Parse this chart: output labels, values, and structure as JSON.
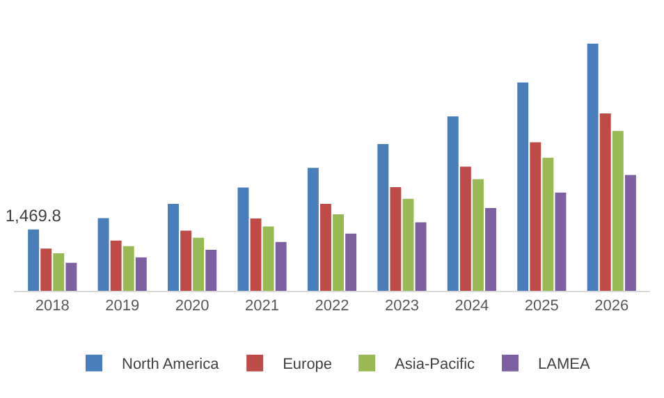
{
  "chart_data": {
    "type": "bar",
    "categories": [
      "2018",
      "2019",
      "2020",
      "2021",
      "2022",
      "2023",
      "2024",
      "2025",
      "2026"
    ],
    "series": [
      {
        "name": "North America",
        "color": "#4a7ebb",
        "values": [
          1469.8,
          1740,
          2080,
          2470,
          2940,
          3510,
          4170,
          4980,
          5910
        ],
        "value_labels": [
          "1,469.8",
          null,
          null,
          null,
          null,
          null,
          null,
          null,
          null
        ]
      },
      {
        "name": "Europe",
        "color": "#be4b48",
        "values": [
          1010,
          1200,
          1440,
          1730,
          2080,
          2480,
          2970,
          3550,
          4240
        ]
      },
      {
        "name": "Asia-Pacific",
        "color": "#98b954",
        "values": [
          900,
          1070,
          1270,
          1540,
          1830,
          2200,
          2670,
          3180,
          3820
        ]
      },
      {
        "name": "LAMEA",
        "color": "#7d60a0",
        "values": [
          670,
          800,
          980,
          1170,
          1370,
          1640,
          1980,
          2350,
          2770
        ]
      }
    ],
    "tick_labels": "x",
    "grid": false,
    "legend": "bottom"
  }
}
